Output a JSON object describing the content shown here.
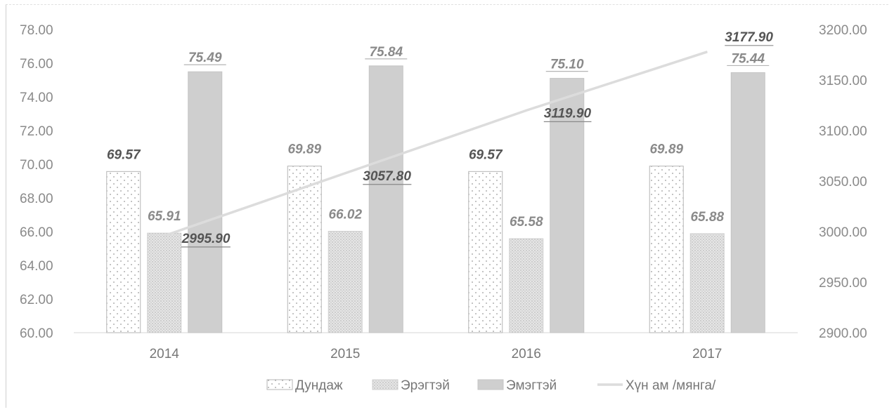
{
  "chart_data": {
    "type": "bar",
    "categories": [
      "2014",
      "2015",
      "2016",
      "2017"
    ],
    "series": [
      {
        "name": "Дундаж",
        "values": [
          69.57,
          69.89,
          69.57,
          69.89
        ],
        "axis": "left",
        "pattern": "dots"
      },
      {
        "name": "Эрэгтэй",
        "values": [
          65.91,
          66.02,
          65.58,
          65.88
        ],
        "axis": "left",
        "pattern": "fine-dots"
      },
      {
        "name": "Эмэгтэй",
        "values": [
          75.49,
          75.84,
          75.1,
          75.44
        ],
        "axis": "left",
        "pattern": "solid-gray"
      },
      {
        "name": "Хүн ам /мянга/",
        "type": "line",
        "values": [
          2995.9,
          3057.8,
          3119.9,
          3177.9
        ],
        "axis": "right"
      }
    ],
    "value_labels": {
      "Дундаж": [
        "69.57",
        "69.89",
        "69.57",
        "69.89"
      ],
      "Эрэгтэй": [
        "65.91",
        "66.02",
        "65.58",
        "65.88"
      ],
      "Эмэгтэй": [
        "75.49",
        "75.84",
        "75.10",
        "75.44"
      ],
      "Хүн ам /мянга/": [
        "2995.90",
        "3057.80",
        "3119.90",
        "3177.90"
      ]
    },
    "y_left": {
      "min": 60,
      "max": 78,
      "step": 2,
      "tick_labels": [
        "60.00",
        "62.00",
        "64.00",
        "66.00",
        "68.00",
        "70.00",
        "72.00",
        "74.00",
        "76.00",
        "78.00"
      ]
    },
    "y_right": {
      "min": 2900,
      "max": 3200,
      "step": 50,
      "tick_labels": [
        "2900.00",
        "2950.00",
        "3000.00",
        "3050.00",
        "3100.00",
        "3150.00",
        "3200.00"
      ]
    },
    "grid": false,
    "legend_position": "bottom",
    "colors": {
      "bar_avg_fill": "#ffffff",
      "bar_male": "#d9d9d9",
      "bar_female": "#cfcfcf",
      "line": "#dcdcdc",
      "text": "#8a8a8a"
    }
  }
}
